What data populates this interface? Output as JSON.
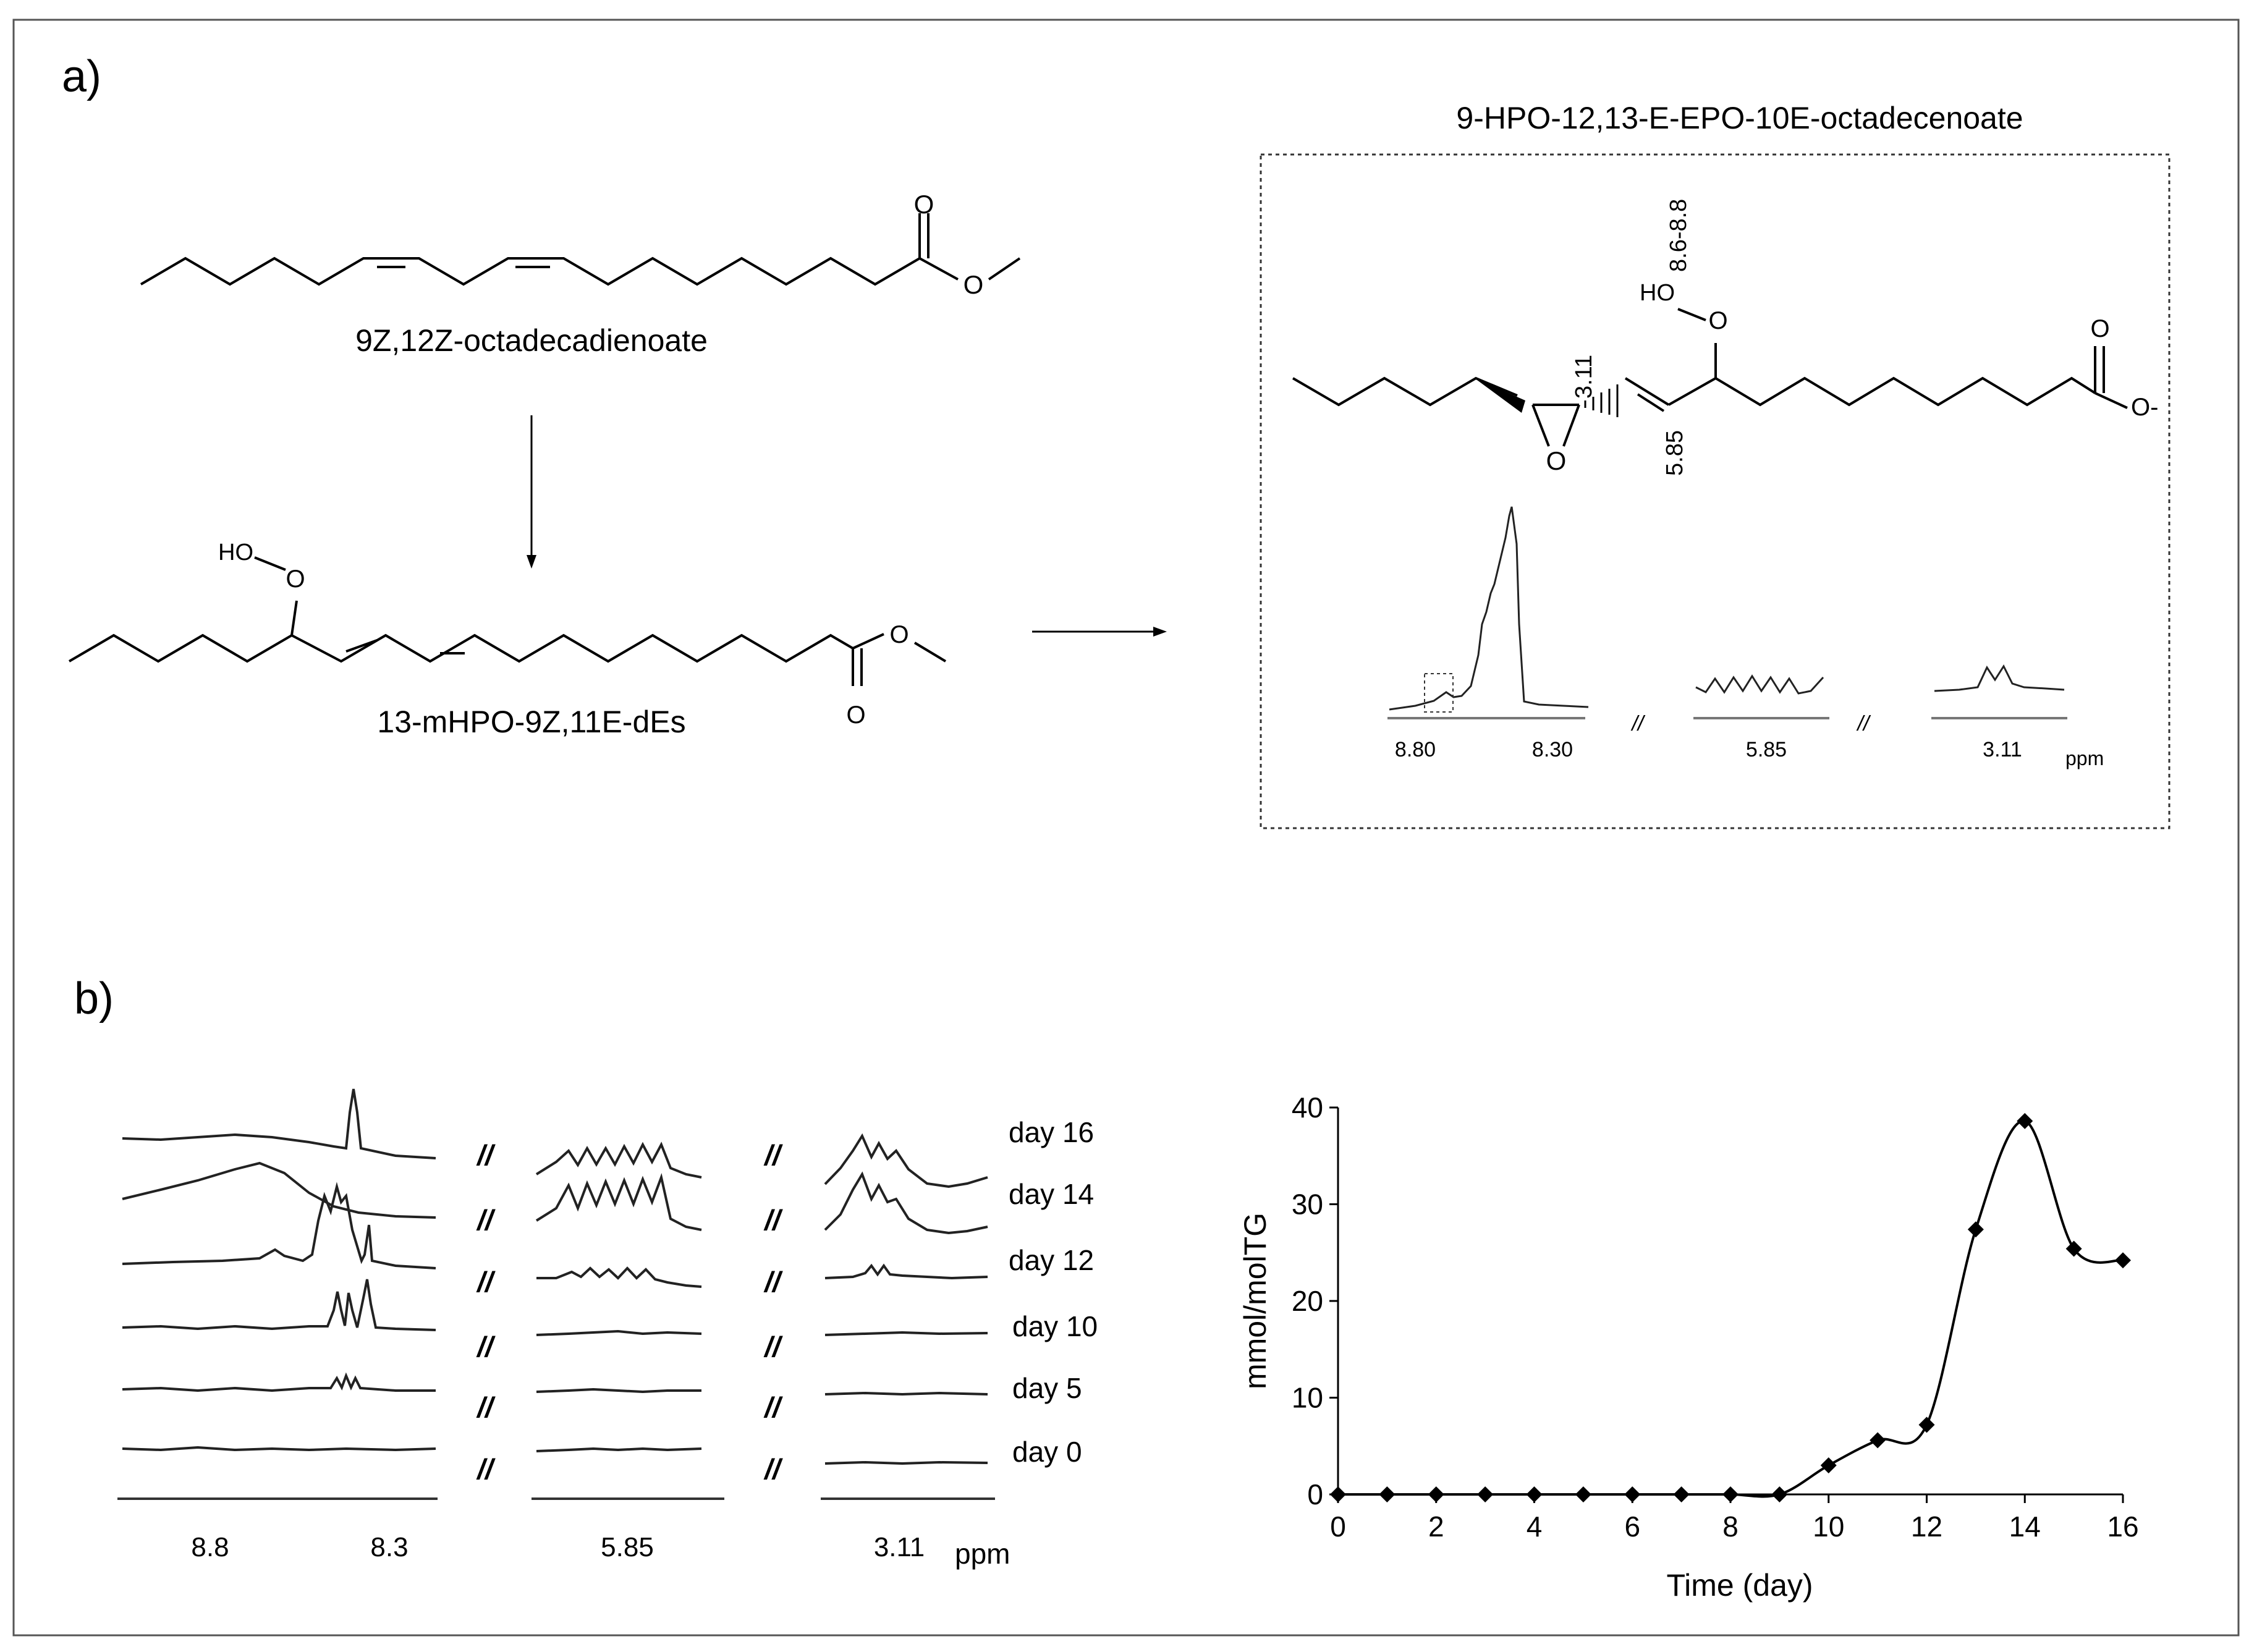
{
  "panel_a": {
    "label": "a)",
    "linoleate_name": "9Z,12Z-octadecadienoate",
    "hydroperoxide_name": "13-mHPO-9Z,11E-dEs",
    "hydroperoxide_group": "HO",
    "product_title": "9-HPO-12,13-E-EPO-10E-octadecenoate",
    "product_shifts": {
      "hydroperoxy": "8.6-8.8",
      "epoxy": "3.11",
      "olefinic": "5.85"
    },
    "product_hydroperoxide_group": "HO",
    "inset_ticks": [
      "8.80",
      "8.30",
      "5.85",
      "3.11"
    ],
    "inset_unit": "ppm",
    "break_mark": "//",
    "atom_O": "O",
    "atom_O_minus": "O-"
  },
  "panel_b": {
    "label": "b)",
    "spectra_days": [
      "day 16",
      "day 14",
      "day 12",
      "day 10",
      "day 5",
      "day 0"
    ],
    "break_mark": "//",
    "spectra_ticks": [
      "8.8",
      "8.3",
      "5.85",
      "3.11"
    ],
    "spectra_unit": "ppm"
  },
  "chart_data": {
    "type": "line",
    "xlabel": "Time (day)",
    "ylabel": "mmol/molTG",
    "xlim": [
      0,
      16
    ],
    "ylim": [
      0,
      40
    ],
    "xticks": [
      0,
      2,
      4,
      6,
      8,
      10,
      12,
      14,
      16
    ],
    "yticks": [
      0,
      10,
      20,
      30,
      40
    ],
    "marker": "diamond",
    "line_color": "#000000",
    "smooth": true,
    "x": [
      0,
      1,
      2,
      3,
      4,
      5,
      6,
      7,
      8,
      9,
      10,
      11,
      12,
      13,
      14,
      15,
      16
    ],
    "y": [
      0,
      0,
      0,
      0,
      0,
      0,
      0,
      0,
      0,
      0,
      3,
      5.6,
      7.2,
      27.4,
      38.6,
      25.4,
      24.2
    ]
  }
}
